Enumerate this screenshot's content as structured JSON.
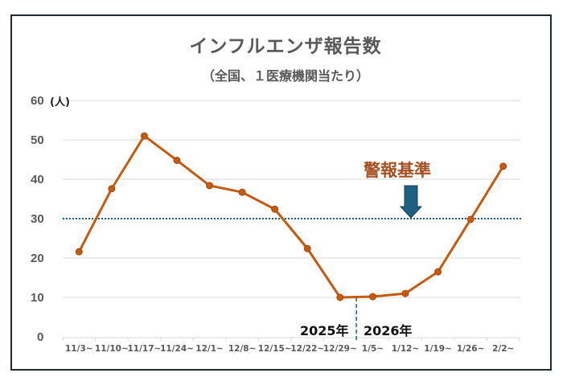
{
  "chart_data": {
    "type": "line",
    "title": "インフルエンザ報告数",
    "subtitle": "（全国、１医療機関当たり）",
    "xlabel": "",
    "ylabel": "(人)",
    "ylim": [
      0,
      60
    ],
    "yticks": [
      0,
      10,
      20,
      30,
      40,
      50,
      60
    ],
    "grid": true,
    "legend": null,
    "categories": [
      "11/3~",
      "11/10~",
      "11/17~",
      "11/24~",
      "12/1~",
      "12/8~",
      "12/15~",
      "12/22~",
      "12/29~",
      "1/5~",
      "1/12~",
      "1/19~",
      "1/26~",
      "2/2~"
    ],
    "series": [
      {
        "name": "インフルエンザ報告数",
        "color": "#c55a11",
        "values": [
          21.6,
          37.6,
          51.0,
          44.8,
          38.4,
          36.7,
          32.4,
          22.4,
          10.0,
          10.2,
          11.0,
          16.5,
          29.8,
          43.3
        ]
      }
    ],
    "reference_lines": [
      {
        "type": "horizontal",
        "value": 30,
        "label": "警報基準",
        "color": "#1f5f7f",
        "style": "dotted"
      },
      {
        "type": "vertical",
        "between": [
          "12/29~",
          "1/5~"
        ],
        "style": "dashed",
        "color": "#1f5f7f"
      }
    ],
    "annotations": [
      {
        "text": "警報基準",
        "color": "#a4501f"
      },
      {
        "text": "2025年",
        "side": "left of year divider"
      },
      {
        "text": "2026年",
        "side": "right of year divider"
      }
    ]
  },
  "labels": {
    "title": "インフルエンザ報告数",
    "subtitle": "（全国、１医療機関当たり）",
    "y_unit": "(人)",
    "alert": "警報基準",
    "year_left": "2025年",
    "year_right": "2026年"
  },
  "colors": {
    "line": "#c55a11",
    "threshold": "#1f5f7f",
    "alert_text": "#a4501f",
    "grid": "#d9d9d9",
    "axis_text": "#595959",
    "frame": "#1f2b33"
  }
}
